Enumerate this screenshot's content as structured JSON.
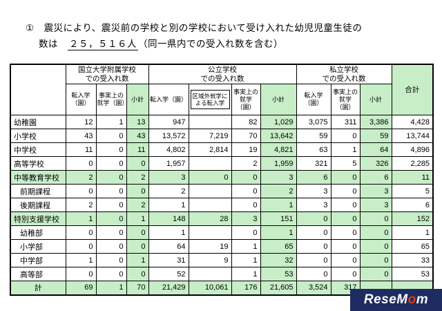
{
  "title": {
    "line1": "①　震災により、震災前の学校と別の学校において受け入れた幼児児童生徒の",
    "line2_prefix": "数は　",
    "count": "２５，５１６人",
    "line2_suffix": "（同一県内での受入れ数を含む）"
  },
  "colors": {
    "highlight_green": "#c8eec8",
    "border_black": "#000000",
    "watermark_navy": "#1e2c61",
    "watermark_red": "#e8380d"
  },
  "table": {
    "group_headers": [
      "国立大学附属学校\nでの受入れ数",
      "公立学校\nでの受入れ数",
      "私立学校\nでの受入れ数"
    ],
    "total_header": "合計",
    "sub_headers": [
      "転入学（園）",
      "事実上の就学（園）",
      "小計",
      "転入学（園）",
      "区域外就学による転入学",
      "事実上の就学（園）",
      "小計",
      "転入学（園）",
      "事実上の就学（園）",
      "小計"
    ],
    "highlight_columns": [
      2,
      6,
      9
    ],
    "rows": [
      {
        "label": "幼稚園",
        "indent": false,
        "highlight": false,
        "center": false,
        "values": [
          "12",
          "1",
          "13",
          "947",
          "",
          "82",
          "1,029",
          "3,075",
          "311",
          "3,386",
          "4,428"
        ]
      },
      {
        "label": "小学校",
        "indent": false,
        "highlight": false,
        "center": false,
        "values": [
          "43",
          "0",
          "43",
          "13,572",
          "7,219",
          "70",
          "13,642",
          "59",
          "0",
          "59",
          "13,744"
        ]
      },
      {
        "label": "中学校",
        "indent": false,
        "highlight": false,
        "center": false,
        "values": [
          "11",
          "0",
          "11",
          "4,802",
          "2,814",
          "19",
          "4,821",
          "63",
          "1",
          "64",
          "4,896"
        ]
      },
      {
        "label": "高等学校",
        "indent": false,
        "highlight": false,
        "center": false,
        "values": [
          "0",
          "0",
          "0",
          "1,957",
          "",
          "2",
          "1,959",
          "321",
          "5",
          "326",
          "2,285"
        ]
      },
      {
        "label": "中等教育学校",
        "indent": false,
        "highlight": true,
        "center": false,
        "values": [
          "2",
          "0",
          "2",
          "3",
          "0",
          "0",
          "3",
          "6",
          "0",
          "6",
          "11"
        ]
      },
      {
        "label": "前期課程",
        "indent": true,
        "highlight": false,
        "center": false,
        "values": [
          "0",
          "0",
          "0",
          "2",
          "",
          "0",
          "2",
          "3",
          "0",
          "3",
          "5"
        ]
      },
      {
        "label": "後期課程",
        "indent": true,
        "highlight": false,
        "center": false,
        "values": [
          "2",
          "0",
          "2",
          "1",
          "",
          "0",
          "1",
          "3",
          "0",
          "3",
          "6"
        ]
      },
      {
        "label": "特別支援学校",
        "indent": false,
        "highlight": true,
        "center": false,
        "values": [
          "1",
          "0",
          "1",
          "148",
          "28",
          "3",
          "151",
          "0",
          "0",
          "0",
          "152"
        ]
      },
      {
        "label": "幼稚部",
        "indent": true,
        "highlight": false,
        "center": false,
        "values": [
          "0",
          "0",
          "0",
          "1",
          "",
          "0",
          "1",
          "0",
          "0",
          "0",
          "1"
        ]
      },
      {
        "label": "小学部",
        "indent": true,
        "highlight": false,
        "center": false,
        "values": [
          "0",
          "0",
          "0",
          "64",
          "19",
          "1",
          "65",
          "0",
          "0",
          "0",
          "65"
        ]
      },
      {
        "label": "中学部",
        "indent": true,
        "highlight": false,
        "center": false,
        "values": [
          "1",
          "0",
          "1",
          "31",
          "9",
          "1",
          "32",
          "0",
          "0",
          "0",
          "33"
        ]
      },
      {
        "label": "高等部",
        "indent": true,
        "highlight": false,
        "center": false,
        "values": [
          "0",
          "0",
          "0",
          "52",
          "",
          "1",
          "53",
          "0",
          "0",
          "0",
          "53"
        ]
      },
      {
        "label": "計",
        "indent": false,
        "highlight": true,
        "center": true,
        "values": [
          "69",
          "1",
          "70",
          "21,429",
          "10,061",
          "176",
          "21,605",
          "3,524",
          "317",
          "",
          ""
        ]
      }
    ]
  },
  "watermark": {
    "part1": "ReseM",
    "accent": "o",
    "part2": "m"
  }
}
